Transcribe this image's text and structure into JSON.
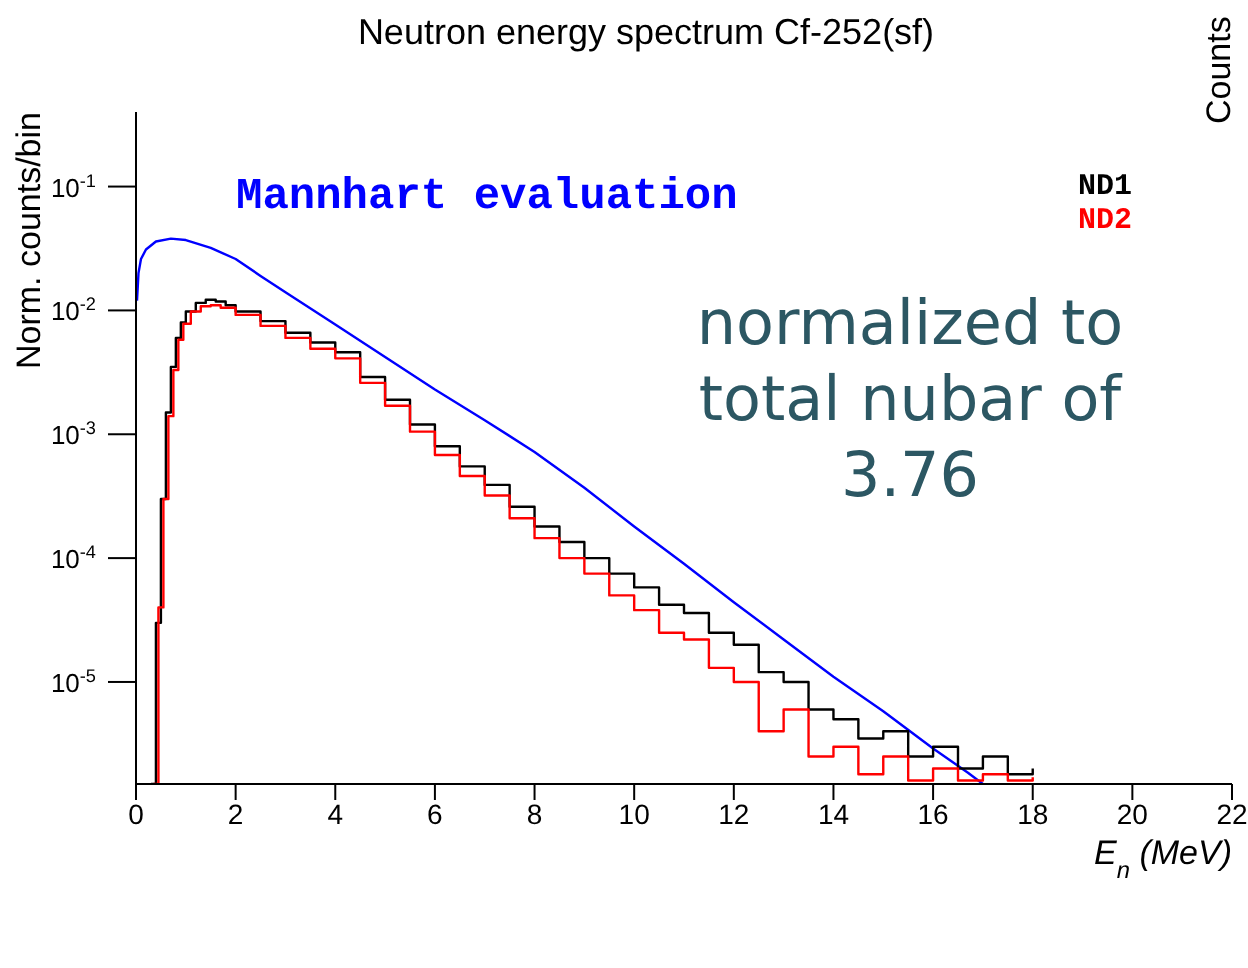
{
  "chart_data": {
    "type": "line",
    "title": "Neutron energy spectrum Cf-252(sf)",
    "xlabel": "E$_{n}$ (MeV)",
    "ylabel": "Norm. counts/bin",
    "y2label": "Counts",
    "annotations": [
      "normalized to total nubar of 3.76"
    ],
    "log": "y",
    "xlim": [
      0,
      22
    ],
    "xticks": [
      0,
      2,
      4,
      6,
      8,
      10,
      12,
      14,
      16,
      18,
      20,
      22
    ],
    "ylim": [
      1.5e-06,
      0.4
    ],
    "yticks": [
      {
        "value": 1e-05,
        "label": "10$^{-5}$"
      },
      {
        "value": 0.0001,
        "label": "10$^{-4}$"
      },
      {
        "value": 0.001,
        "label": "10$^{-3}$"
      },
      {
        "value": 0.01,
        "label": "10$^{-2}$"
      },
      {
        "value": 0.1,
        "label": "10$^{-1}$"
      }
    ],
    "legend": "top",
    "grid": false,
    "marker": "none",
    "series": [
      {
        "name": "Mannhart evaluation",
        "color": "#0000ff",
        "type": "line",
        "x": [
          0.02,
          0.05,
          0.1,
          0.2,
          0.4,
          0.7,
          1.0,
          1.5,
          2,
          2.5,
          3,
          4,
          5,
          6,
          7,
          8,
          9,
          10,
          11,
          12,
          13,
          14,
          15,
          16,
          16.7,
          17
        ],
        "values": [
          0.012,
          0.02,
          0.026,
          0.031,
          0.036,
          0.038,
          0.037,
          0.032,
          0.026,
          0.019,
          0.014,
          0.0077,
          0.0042,
          0.0023,
          0.0013,
          0.00072,
          0.00037,
          0.00018,
          9e-05,
          4.4e-05,
          2.2e-05,
          1.1e-05,
          5.8e-06,
          2.9e-06,
          1.85e-06,
          1.5e-06
        ]
      },
      {
        "name": "ND1",
        "color": "#000000",
        "type": "step",
        "x": [
          0.3,
          0.4,
          0.5,
          0.6,
          0.7,
          0.8,
          0.9,
          1.0,
          1.2,
          1.4,
          1.6,
          1.8,
          2.0,
          2.5,
          3.0,
          3.5,
          4.0,
          4.5,
          5.0,
          5.5,
          6.0,
          6.5,
          7.0,
          7.5,
          8.0,
          8.5,
          9.0,
          9.5,
          10.0,
          10.5,
          11.0,
          11.5,
          12.0,
          12.5,
          13.0,
          13.5,
          14.0,
          14.5,
          15.0,
          15.5,
          16.0,
          16.5,
          17.0,
          17.5,
          18.0
        ],
        "values": [
          1.5e-06,
          3e-05,
          0.0003,
          0.0015,
          0.0035,
          0.006,
          0.008,
          0.0098,
          0.0115,
          0.0122,
          0.0118,
          0.011,
          0.0098,
          0.0082,
          0.0066,
          0.0055,
          0.0046,
          0.0029,
          0.0019,
          0.0012,
          0.0008,
          0.00055,
          0.00039,
          0.00026,
          0.00018,
          0.000135,
          0.0001,
          7.5e-05,
          5.8e-05,
          4.2e-05,
          3.6e-05,
          2.5e-05,
          2e-05,
          1.2e-05,
          1e-05,
          6e-06,
          5e-06,
          3.5e-06,
          4e-06,
          2.5e-06,
          3e-06,
          2e-06,
          2.5e-06,
          1.8e-06,
          2e-06
        ]
      },
      {
        "name": "ND2",
        "color": "#ff0000",
        "type": "step",
        "x": [
          0.35,
          0.45,
          0.55,
          0.65,
          0.75,
          0.85,
          0.95,
          1.1,
          1.3,
          1.5,
          1.7,
          2.0,
          2.5,
          3.0,
          3.5,
          4.0,
          4.5,
          5.0,
          5.5,
          6.0,
          6.5,
          7.0,
          7.5,
          8.0,
          8.5,
          9.0,
          9.5,
          10.0,
          10.5,
          11.0,
          11.5,
          12.0,
          12.5,
          13.0,
          13.5,
          14.0,
          14.5,
          15.0,
          15.5,
          16.0,
          16.5,
          17.0,
          17.5,
          18.0
        ],
        "values": [
          1.5e-06,
          4e-05,
          0.0003,
          0.0014,
          0.0033,
          0.0058,
          0.0078,
          0.0098,
          0.0108,
          0.011,
          0.0105,
          0.0092,
          0.0075,
          0.006,
          0.0049,
          0.0041,
          0.0026,
          0.0017,
          0.00105,
          0.00068,
          0.00046,
          0.00032,
          0.00021,
          0.000145,
          0.0001,
          7.5e-05,
          5e-05,
          3.8e-05,
          2.5e-05,
          2.2e-05,
          1.3e-05,
          1e-05,
          4e-06,
          6e-06,
          2.5e-06,
          3e-06,
          1.8e-06,
          2.5e-06,
          1.6e-06,
          2e-06,
          1.6e-06,
          1.8e-06,
          1.6e-06,
          1.7e-06
        ]
      }
    ]
  }
}
